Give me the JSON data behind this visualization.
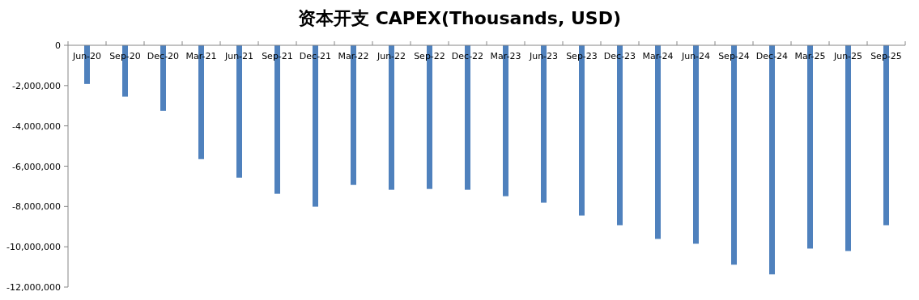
{
  "chart_data": {
    "type": "bar",
    "title": "资本开支 CAPEX(Thousands, USD)",
    "categories": [
      "Jun-20",
      "Sep-20",
      "Dec-20",
      "Mar-21",
      "Jun-21",
      "Sep-21",
      "Dec-21",
      "Mar-22",
      "Jun-22",
      "Sep-22",
      "Dec-22",
      "Mar-23",
      "Jun-23",
      "Sep-23",
      "Dec-23",
      "Mar-24",
      "Jun-24",
      "Sep-24",
      "Dec-24",
      "Mar-25",
      "Jun-25",
      "Sep-25"
    ],
    "values": [
      -1920000,
      -2550000,
      -3250000,
      -5650000,
      -6570000,
      -7370000,
      -8010000,
      -6930000,
      -7170000,
      -7130000,
      -7170000,
      -7490000,
      -7810000,
      -8450000,
      -8930000,
      -9610000,
      -9850000,
      -10890000,
      -11370000,
      -10090000,
      -10210000,
      -8930000
    ],
    "color": "#4f81bd",
    "ylim": [
      -12000000,
      0
    ],
    "yticks": [
      {
        "value": -12000000,
        "label": "-12,000,000"
      },
      {
        "value": -10000000,
        "label": "-10,000,000"
      },
      {
        "value": -8000000,
        "label": "-8,000,000"
      },
      {
        "value": -6000000,
        "label": "-6,000,000"
      },
      {
        "value": -4000000,
        "label": "-4,000,000"
      },
      {
        "value": -2000000,
        "label": "-2,000,000"
      },
      0
    ],
    "grid": false
  }
}
